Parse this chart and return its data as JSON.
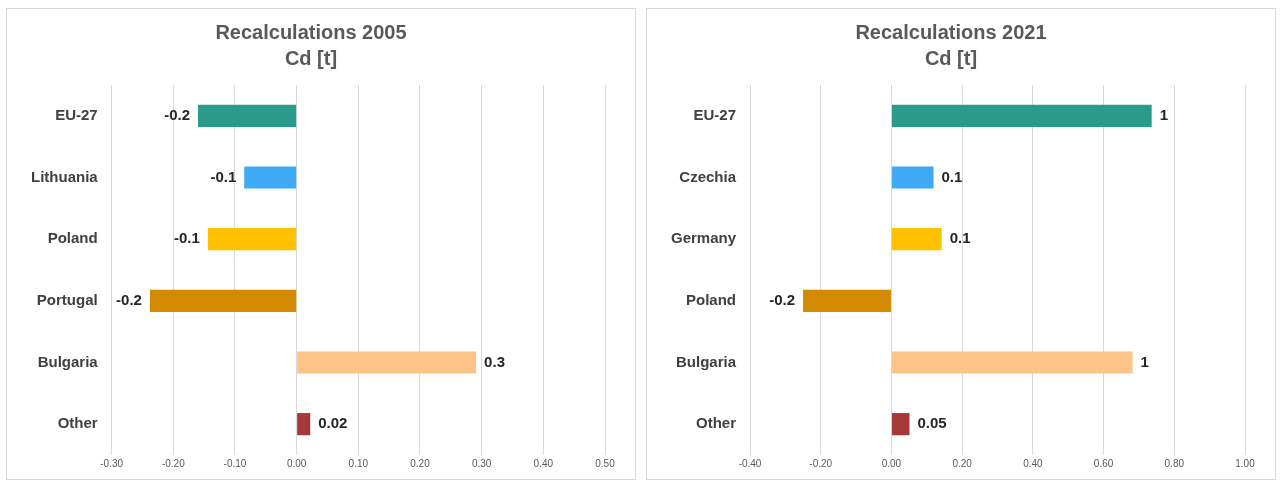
{
  "chart_data": [
    {
      "type": "bar",
      "orientation": "horizontal",
      "title": "Recalculations 2005",
      "subtitle": "Cd [t]",
      "categories": [
        "EU-27",
        "Lithuania",
        "Poland",
        "Portugal",
        "Bulgaria",
        "Other"
      ],
      "values": [
        -0.16,
        -0.085,
        -0.144,
        -0.238,
        0.291,
        0.022
      ],
      "colors": [
        "#2a9a8a",
        "#3eaaf5",
        "#ffc000",
        "#d48a00",
        "#fdc48a",
        "#a5393a"
      ],
      "value_labels": [
        "-0.2",
        "-0.1",
        "-0.1",
        "-0.2",
        "0.3",
        "0.02"
      ],
      "xlim": [
        -0.3,
        0.5
      ],
      "xticks": [
        {
          "value": -0.3,
          "label": "-0.30"
        },
        {
          "value": -0.2,
          "label": "-0.20"
        },
        {
          "value": -0.1,
          "label": "-0.10"
        },
        {
          "value": 0,
          "label": "0.00"
        },
        {
          "value": 0.1,
          "label": "0.10"
        },
        {
          "value": 0.2,
          "label": "0.20"
        },
        {
          "value": 0.3,
          "label": "0.30"
        },
        {
          "value": 0.4,
          "label": "0.40"
        },
        {
          "value": 0.5,
          "label": "0.50"
        }
      ],
      "grid": "x",
      "legend": false
    },
    {
      "type": "bar",
      "orientation": "horizontal",
      "title": "Recalculations 2021",
      "subtitle": "Cd [t]",
      "categories": [
        "EU-27",
        "Czechia",
        "Germany",
        "Poland",
        "Bulgaria",
        "Other"
      ],
      "values": [
        0.736,
        0.119,
        0.142,
        -0.25,
        0.682,
        0.051
      ],
      "colors": [
        "#2a9a8a",
        "#3eaaf5",
        "#ffc000",
        "#d48a00",
        "#fdc48a",
        "#a5393a"
      ],
      "value_labels": [
        "1",
        "0.1",
        "0.1",
        "-0.2",
        "1",
        "0.05"
      ],
      "xlim": [
        -0.4,
        1.0
      ],
      "xticks": [
        {
          "value": -0.4,
          "label": "-0.40"
        },
        {
          "value": -0.2,
          "label": "-0.20"
        },
        {
          "value": 0,
          "label": "0.00"
        },
        {
          "value": 0.2,
          "label": "0.20"
        },
        {
          "value": 0.4,
          "label": "0.40"
        },
        {
          "value": 0.6,
          "label": "0.60"
        },
        {
          "value": 0.8,
          "label": "0.80"
        },
        {
          "value": 1.0,
          "label": "1.00"
        }
      ],
      "grid": "x",
      "legend": false
    }
  ]
}
